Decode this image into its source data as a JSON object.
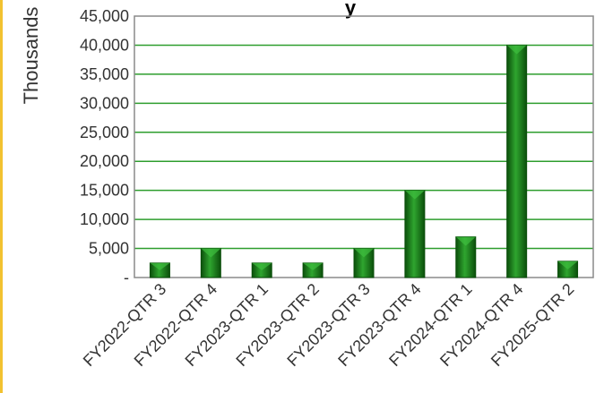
{
  "chart_data": {
    "type": "bar",
    "title": "y",
    "ylabel": "Thousands",
    "xlabel": "",
    "ylim": [
      0,
      45000
    ],
    "yticks": [
      0,
      5000,
      10000,
      15000,
      20000,
      25000,
      30000,
      35000,
      40000,
      45000
    ],
    "ytick_labels": [
      "-",
      "5,000",
      "10,000",
      "15,000",
      "20,000",
      "25,000",
      "30,000",
      "35,000",
      "40,000",
      "45,000"
    ],
    "categories": [
      "FY2022-QTR 3",
      "FY2022-QTR 4",
      "FY2023-QTR 1",
      "FY2023-QTR 2",
      "FY2023-QTR 3",
      "FY2023-QTR 4",
      "FY2024-QTR 1",
      "FY2024-QTR 4",
      "FY2025-QTR 2"
    ],
    "values": [
      2500,
      5000,
      2500,
      2500,
      5000,
      15000,
      7000,
      40000,
      2800
    ],
    "grid": true,
    "legend": "none",
    "colors": {
      "bar": "#1a8a1a",
      "bar_dark": "#0b4f0b",
      "bar_light": "#3fbf3f",
      "grid": "#2e9e2e",
      "frame": "#8a8a8a",
      "accent": "#f2c230"
    }
  }
}
